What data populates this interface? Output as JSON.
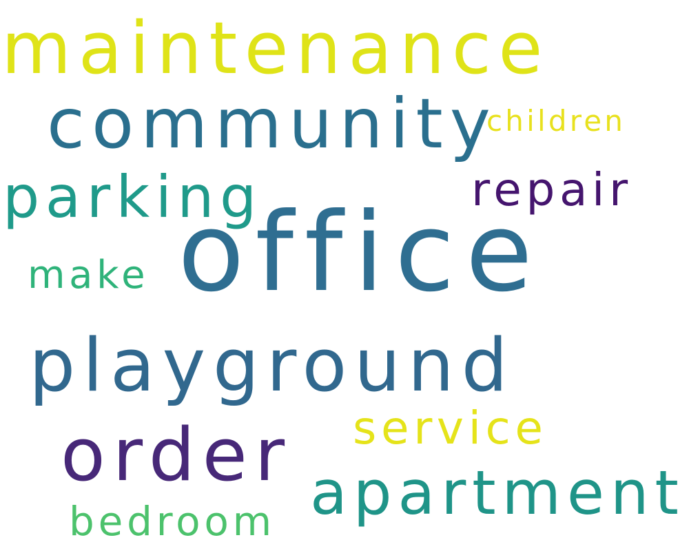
{
  "words": [
    {
      "text": "maintenance",
      "color": "#dfe318"
    },
    {
      "text": "community",
      "color": "#2a6f8e"
    },
    {
      "text": "children",
      "color": "#e8e11e"
    },
    {
      "text": "parking",
      "color": "#1f9a8a"
    },
    {
      "text": "repair",
      "color": "#45156e"
    },
    {
      "text": "office",
      "color": "#2f6e91"
    },
    {
      "text": "make",
      "color": "#2fb37a"
    },
    {
      "text": "playground",
      "color": "#31688e"
    },
    {
      "text": "service",
      "color": "#e5e31a"
    },
    {
      "text": "order",
      "color": "#472878"
    },
    {
      "text": "apartment",
      "color": "#1f9488"
    },
    {
      "text": "bedroom",
      "color": "#4cc26c"
    }
  ]
}
